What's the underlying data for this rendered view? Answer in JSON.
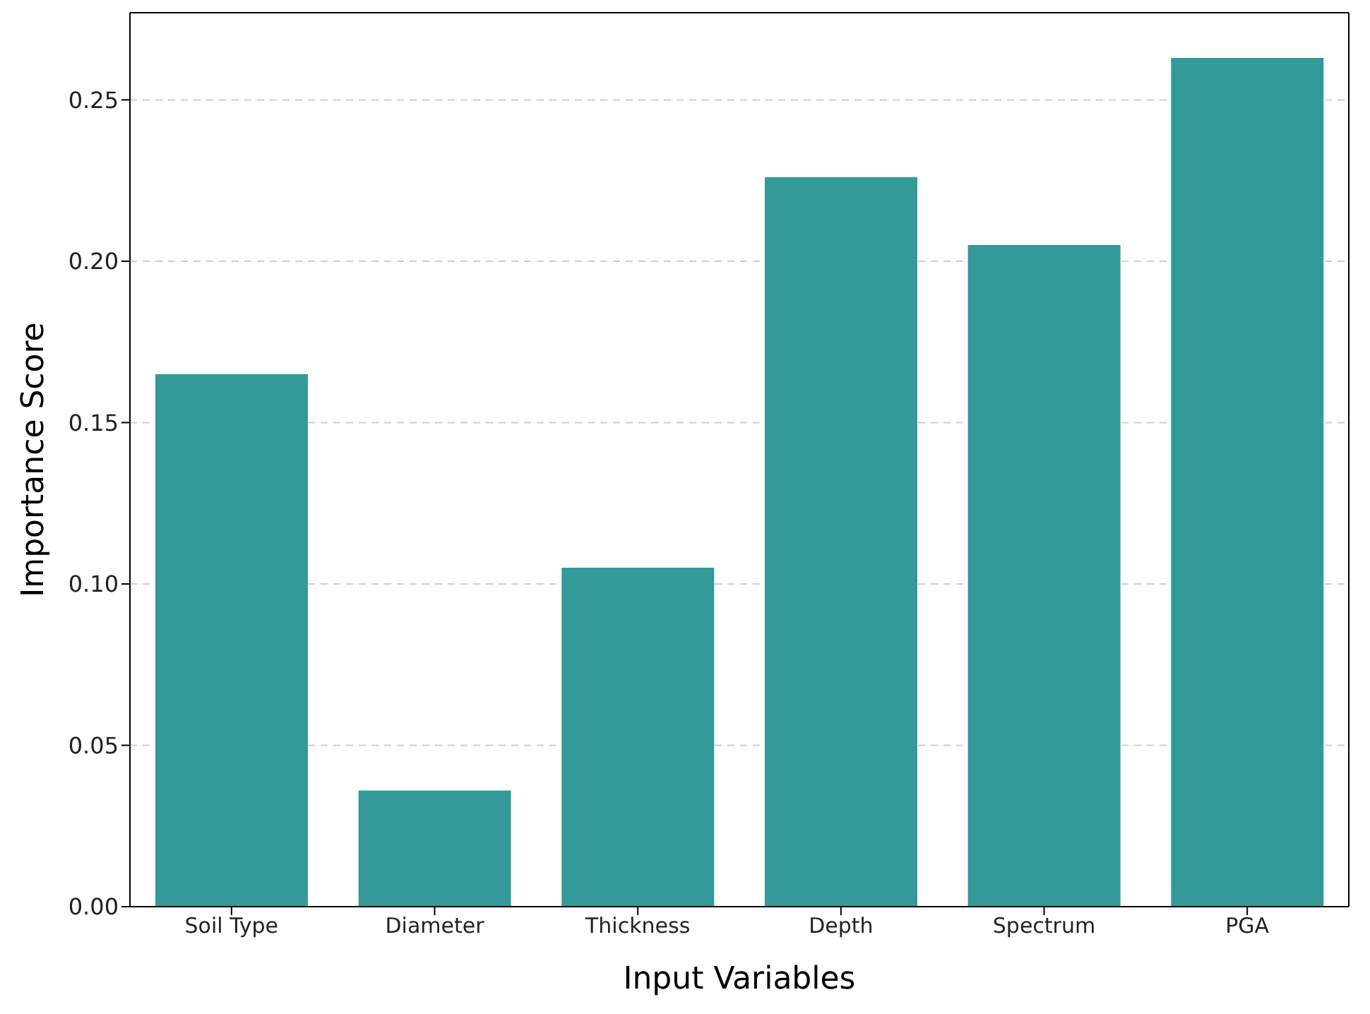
{
  "chart_data": {
    "type": "bar",
    "xlabel": "Input Variables",
    "ylabel": "Importance Score",
    "categories": [
      "Soil Type",
      "Diameter",
      "Thickness",
      "Depth",
      "Spectrum",
      "PGA"
    ],
    "values": [
      0.165,
      0.036,
      0.105,
      0.226,
      0.205,
      0.263
    ],
    "color": "#339a99",
    "ylim": [
      0,
      0.277
    ],
    "yticks": [
      {
        "value": 0,
        "label": "0.00"
      },
      0.05,
      {
        "value": 0.1,
        "label": "0.10"
      },
      0.15,
      {
        "value": 0.2,
        "label": "0.20"
      },
      0.25
    ],
    "grid": "y"
  }
}
